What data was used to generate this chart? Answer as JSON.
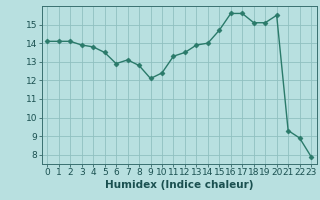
{
  "x": [
    0,
    1,
    2,
    3,
    4,
    5,
    6,
    7,
    8,
    9,
    10,
    11,
    12,
    13,
    14,
    15,
    16,
    17,
    18,
    19,
    20,
    21,
    22,
    23
  ],
  "y": [
    14.1,
    14.1,
    14.1,
    13.9,
    13.8,
    13.5,
    12.9,
    13.1,
    12.8,
    12.1,
    12.4,
    13.3,
    13.5,
    13.9,
    14.0,
    14.7,
    15.6,
    15.6,
    15.1,
    15.1,
    15.5,
    9.3,
    8.9,
    7.9
  ],
  "xlim": [
    -0.5,
    23.5
  ],
  "ylim": [
    7.5,
    16.0
  ],
  "yticks": [
    8,
    9,
    10,
    11,
    12,
    13,
    14,
    15
  ],
  "xticks": [
    0,
    1,
    2,
    3,
    4,
    5,
    6,
    7,
    8,
    9,
    10,
    11,
    12,
    13,
    14,
    15,
    16,
    17,
    18,
    19,
    20,
    21,
    22,
    23
  ],
  "xlabel": "Humidex (Indice chaleur)",
  "line_color": "#2a7a6a",
  "marker": "D",
  "marker_size": 2.5,
  "background_color": "#b8e0e0",
  "grid_color": "#90c0c0",
  "tick_label_color": "#1a5050",
  "axis_color": "#3a7070",
  "xlabel_color": "#1a5050",
  "xlabel_fontsize": 7.5,
  "tick_fontsize": 6.5,
  "line_width": 1.0
}
